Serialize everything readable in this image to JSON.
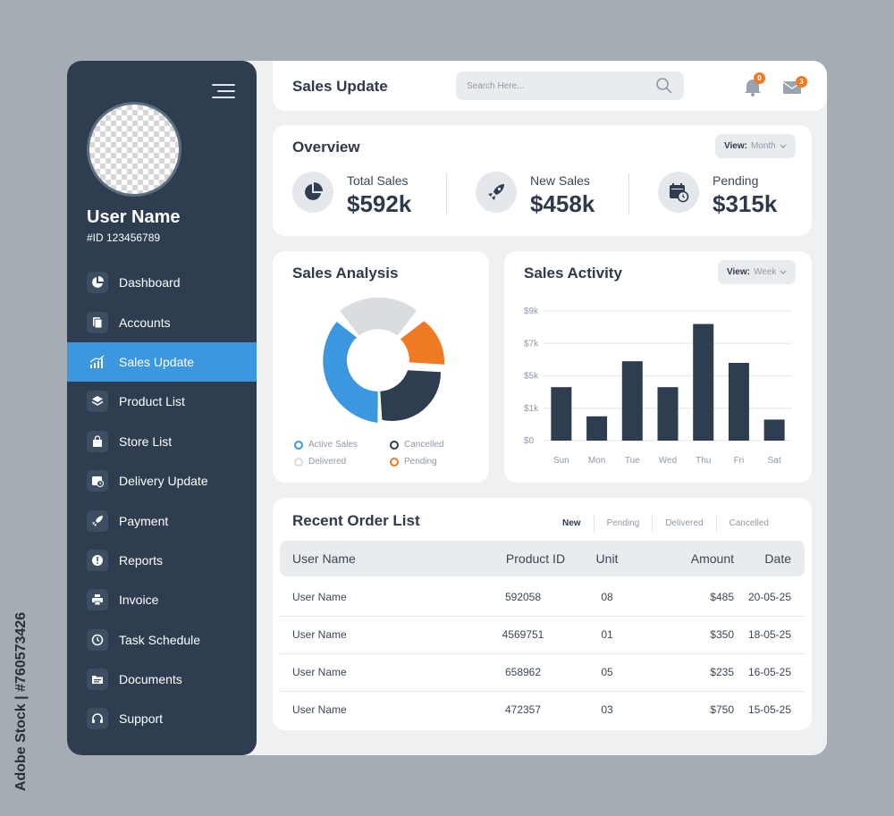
{
  "watermark": "Adobe Stock | #760573426",
  "sidebar": {
    "user_name": "User Name",
    "user_id": "#ID 123456789",
    "items": [
      {
        "label": "Dashboard",
        "icon": "pie-chart-icon",
        "active": false
      },
      {
        "label": "Accounts",
        "icon": "document-icon",
        "active": false
      },
      {
        "label": "Sales Update",
        "icon": "bar-chart-icon",
        "active": true
      },
      {
        "label": "Product List",
        "icon": "layers-icon",
        "active": false
      },
      {
        "label": "Store List",
        "icon": "shopping-bag-icon",
        "active": false
      },
      {
        "label": "Delivery Update",
        "icon": "calendar-clock-icon",
        "active": false
      },
      {
        "label": "Payment",
        "icon": "rocket-icon",
        "active": false
      },
      {
        "label": "Reports",
        "icon": "alert-icon",
        "active": false
      },
      {
        "label": "Invoice",
        "icon": "printer-icon",
        "active": false
      },
      {
        "label": "Task Schedule",
        "icon": "clock-icon",
        "active": false
      },
      {
        "label": "Documents",
        "icon": "folder-icon",
        "active": false
      },
      {
        "label": "Support",
        "icon": "headphones-icon",
        "active": false
      }
    ]
  },
  "header": {
    "title": "Sales Update",
    "search_placeholder": "Search Here...",
    "notifications": "0",
    "messages": "3"
  },
  "overview": {
    "title": "Overview",
    "view_label": "View:",
    "view_value": "Month",
    "stats": [
      {
        "label": "Total Sales",
        "value": "$592k",
        "icon": "pie-chart-icon"
      },
      {
        "label": "New Sales",
        "value": "$458k",
        "icon": "rocket-icon"
      },
      {
        "label": "Pending",
        "value": "$315k",
        "icon": "calendar-clock-icon"
      }
    ]
  },
  "analysis": {
    "title": "Sales Analysis",
    "legend": [
      {
        "label": "Active Sales",
        "color": "#3d97df"
      },
      {
        "label": "Cancelled",
        "color": "#2e3d50"
      },
      {
        "label": "Delivered",
        "color": "#dadddf"
      },
      {
        "label": "Pending",
        "color": "#f07a24"
      }
    ]
  },
  "chart_data": {
    "type": "bar",
    "title": "Sales Activity",
    "categories": [
      "Sun",
      "Mon",
      "Tue",
      "Wed",
      "Thu",
      "Fri",
      "Sat"
    ],
    "values": [
      3.3,
      1.5,
      4.9,
      3.3,
      7.2,
      4.8,
      1.3
    ],
    "y_ticks": [
      "$0",
      "$1k",
      "$5k",
      "$7k",
      "$9k"
    ],
    "ylim": [
      0,
      8
    ],
    "grid": true,
    "bar_color": "#2e3d50",
    "view_label": "View:",
    "view_value": "Week"
  },
  "orders": {
    "title": "Recent Order List",
    "tabs": [
      "New",
      "Pending",
      "Delivered",
      "Cancelled"
    ],
    "columns": [
      "User Name",
      "Product ID",
      "Unit",
      "Amount",
      "Date"
    ],
    "rows": [
      [
        "User Name",
        "592058",
        "08",
        "$485",
        "20-05-25"
      ],
      [
        "User Name",
        "4569751",
        "01",
        "$350",
        "18-05-25"
      ],
      [
        "User Name",
        "658962",
        "05",
        "$235",
        "16-05-25"
      ],
      [
        "User Name",
        "472357",
        "03",
        "$750",
        "15-05-25"
      ]
    ]
  }
}
